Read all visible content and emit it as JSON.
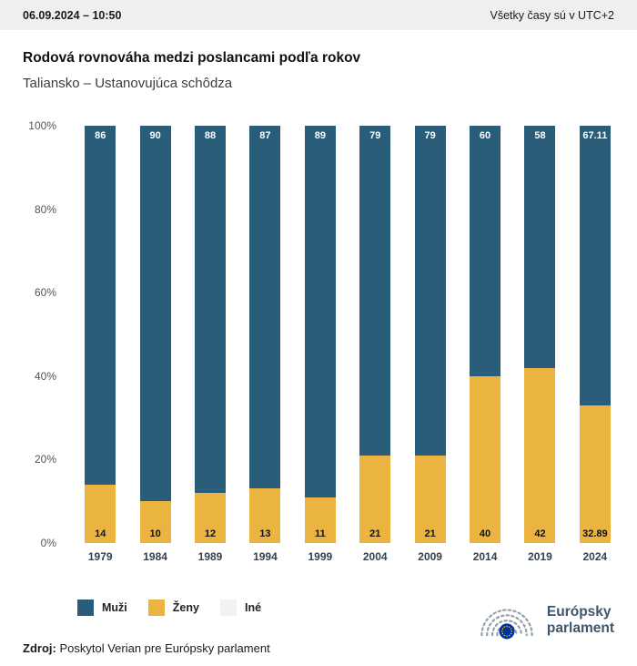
{
  "header": {
    "datetime": "06.09.2024 – 10:50",
    "timezone_note": "Všetky časy sú v UTC+2"
  },
  "title": "Rodová rovnováha medzi poslancami podľa rokov",
  "subtitle": "Taliansko – Ustanovujúca schôdza",
  "chart_data": {
    "type": "bar",
    "stacked": true,
    "percent_stacked": true,
    "title": "Rodová rovnováha medzi poslancami podľa rokov",
    "subtitle": "Taliansko – Ustanovujúca schôdza",
    "categories": [
      "1979",
      "1984",
      "1989",
      "1994",
      "1999",
      "2004",
      "2009",
      "2014",
      "2019",
      "2024"
    ],
    "series": [
      {
        "name": "Muži",
        "color": "#2a5d7a",
        "values": [
          86,
          90,
          88,
          87,
          89,
          79,
          79,
          60,
          58,
          67.11
        ],
        "value_labels": [
          "86",
          "90",
          "88",
          "87",
          "89",
          "79",
          "79",
          "60",
          "58",
          "67.11"
        ]
      },
      {
        "name": "Ženy",
        "color": "#ebb340",
        "values": [
          14,
          10,
          12,
          13,
          11,
          21,
          21,
          40,
          42,
          32.89
        ],
        "value_labels": [
          "14",
          "10",
          "12",
          "13",
          "11",
          "21",
          "21",
          "40",
          "42",
          "32.89"
        ]
      },
      {
        "name": "Iné",
        "color": "#f2f2f2",
        "values": [
          0,
          0,
          0,
          0,
          0,
          0,
          0,
          0,
          0,
          0
        ],
        "value_labels": [
          "",
          "",
          "",
          "",
          "",
          "",
          "",
          "",
          "",
          ""
        ]
      }
    ],
    "ylim": [
      0,
      100
    ],
    "ytick_values": [
      0,
      20,
      40,
      60,
      80,
      100
    ],
    "ytick_labels": [
      "0%",
      "20%",
      "40%",
      "60%",
      "80%",
      "100%"
    ],
    "grid": false,
    "legend_position": "bottom-left"
  },
  "footer": {
    "source_label": "Zdroj:",
    "source_text": "Poskytol Verian pre Európsky parlament"
  },
  "logo": {
    "name_line1": "Európsky",
    "name_line2": "parlament"
  }
}
